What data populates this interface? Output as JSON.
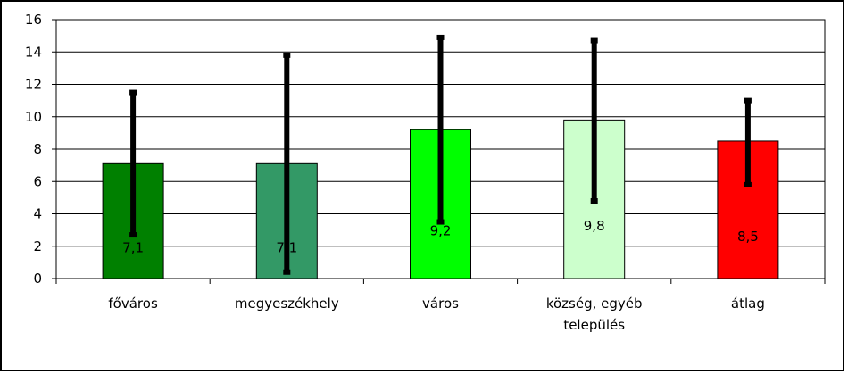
{
  "chart_data": {
    "type": "bar",
    "title": "",
    "xlabel": "",
    "ylabel": "",
    "ylim": [
      0,
      16
    ],
    "yticks": [
      0,
      2,
      4,
      6,
      8,
      10,
      12,
      14,
      16
    ],
    "grid": true,
    "legend": "none",
    "categories": [
      [
        "főváros"
      ],
      [
        "megyeszékhely"
      ],
      [
        "város"
      ],
      [
        "község, egyéb",
        "település"
      ],
      [
        "átlag"
      ]
    ],
    "values": [
      7.1,
      7.1,
      9.2,
      9.8,
      8.5
    ],
    "data_labels": [
      "7,1",
      "7,1",
      "9,2",
      "9,8",
      "8,5"
    ],
    "error_bars": [
      {
        "low": 2.7,
        "high": 11.5
      },
      {
        "low": 0.4,
        "high": 13.8
      },
      {
        "low": 3.5,
        "high": 14.9
      },
      {
        "low": 4.8,
        "high": 14.7
      },
      {
        "low": 5.8,
        "high": 11.0
      }
    ],
    "colors": [
      "#008000",
      "#339966",
      "#00ff00",
      "#ccffcc",
      "#ff0000"
    ]
  }
}
